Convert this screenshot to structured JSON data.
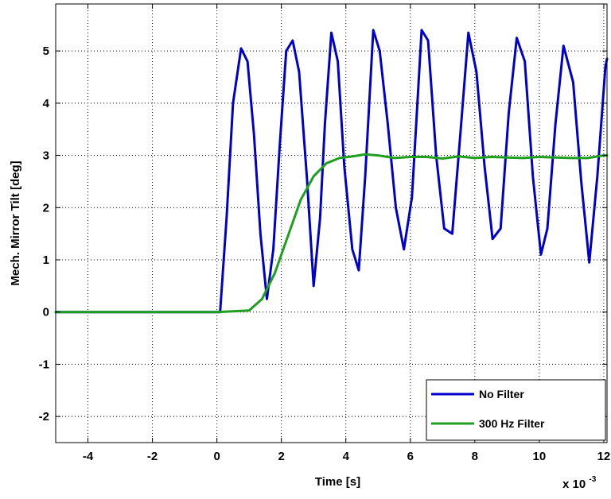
{
  "chart_data": {
    "type": "line",
    "title": "",
    "xlabel": "Time [s]",
    "ylabel": "Mech. Mirror Tilt [deg]",
    "x_multiplier_label": "x 10",
    "x_multiplier_exponent": "-3",
    "xlim": [
      -5,
      12.1
    ],
    "ylim": [
      -2.5,
      5.9
    ],
    "xticks": [
      -4,
      -2,
      0,
      2,
      4,
      6,
      8,
      10,
      12
    ],
    "yticks": [
      -2,
      -1,
      0,
      1,
      2,
      3,
      4,
      5
    ],
    "grid": true,
    "legend_position": "bottom-right",
    "series": [
      {
        "name": "No Filter",
        "color": "#0000cc",
        "x": [
          -5,
          -2,
          0,
          0.1,
          0.3,
          0.5,
          0.75,
          0.95,
          1.15,
          1.35,
          1.55,
          1.75,
          1.95,
          2.15,
          2.35,
          2.55,
          2.8,
          3.0,
          3.2,
          3.35,
          3.55,
          3.75,
          3.95,
          4.2,
          4.4,
          4.6,
          4.85,
          5.05,
          5.3,
          5.55,
          5.8,
          6.05,
          6.35,
          6.55,
          6.8,
          7.05,
          7.3,
          7.55,
          7.8,
          8.05,
          8.3,
          8.55,
          8.8,
          9.05,
          9.3,
          9.55,
          9.8,
          10.05,
          10.25,
          10.5,
          10.75,
          11.05,
          11.3,
          11.55,
          11.8,
          12.05,
          12.1
        ],
        "y": [
          0,
          0,
          0,
          0,
          1.8,
          4.0,
          5.05,
          4.8,
          3.4,
          1.5,
          0.25,
          1.2,
          3.2,
          5.0,
          5.2,
          4.6,
          2.5,
          0.5,
          1.8,
          3.6,
          5.35,
          4.8,
          2.8,
          1.2,
          0.8,
          2.6,
          5.4,
          5.0,
          3.6,
          2.0,
          1.2,
          2.2,
          5.4,
          5.2,
          3.0,
          1.6,
          1.5,
          3.4,
          5.35,
          4.6,
          2.8,
          1.4,
          1.6,
          3.8,
          5.25,
          4.8,
          2.6,
          1.1,
          1.6,
          3.6,
          5.1,
          4.4,
          2.5,
          0.95,
          2.6,
          4.7,
          4.85
        ]
      },
      {
        "name": "300 Hz Filter",
        "color": "#1ea01e",
        "x": [
          -5,
          0,
          1.0,
          1.4,
          1.8,
          2.2,
          2.6,
          3.0,
          3.4,
          3.8,
          4.2,
          4.6,
          5.0,
          5.5,
          6.0,
          6.5,
          7.0,
          7.5,
          8.0,
          8.5,
          9.0,
          9.5,
          10.0,
          10.5,
          11.0,
          11.5,
          12.0,
          12.1
        ],
        "y": [
          0,
          0,
          0.03,
          0.25,
          0.75,
          1.45,
          2.15,
          2.6,
          2.85,
          2.95,
          2.98,
          3.02,
          3.0,
          2.95,
          2.97,
          2.97,
          2.94,
          2.98,
          2.95,
          2.97,
          2.96,
          2.95,
          2.97,
          2.96,
          2.95,
          2.95,
          3.0,
          3.0
        ]
      }
    ]
  }
}
